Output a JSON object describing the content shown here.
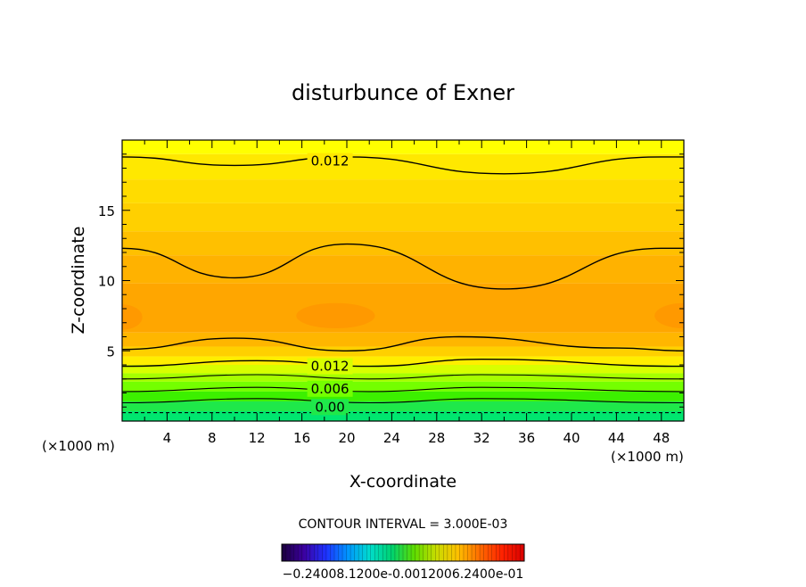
{
  "chart_data": {
    "type": "contour",
    "title": "disturbunce of Exner",
    "xlabel": "X-coordinate",
    "ylabel": "Z-coordinate",
    "x_unit": "(×1000 m)",
    "y_unit": "(×1000 m)",
    "xlim": [
      0,
      50
    ],
    "ylim": [
      0,
      20
    ],
    "x_ticks": [
      4,
      8,
      12,
      16,
      20,
      24,
      28,
      32,
      36,
      40,
      44,
      48
    ],
    "y_ticks": [
      5,
      10,
      15
    ],
    "contour_interval_text": "CONTOUR INTERVAL = 3.000E-03",
    "colorbar_label_text": "−0.24008.1200e-0.0012006.2400e-01",
    "contour_labels": [
      {
        "text": "0.012",
        "x": 18.5,
        "y": 18.5
      },
      {
        "text": "0.012",
        "x": 18.5,
        "y": 3.9
      },
      {
        "text": "0.006",
        "x": 18.5,
        "y": 2.3
      },
      {
        "text": "0.00",
        "x": 18.5,
        "y": 1.0
      }
    ],
    "contour_lines": [
      {
        "level": 0.012,
        "points": [
          [
            0,
            18.8
          ],
          [
            10,
            18.2
          ],
          [
            20,
            18.8
          ],
          [
            34,
            17.6
          ],
          [
            48,
            18.8
          ],
          [
            50,
            18.8
          ]
        ]
      },
      {
        "level": 0.015,
        "points": [
          [
            0,
            12.3
          ],
          [
            10,
            10.2
          ],
          [
            20,
            12.6
          ],
          [
            34,
            9.4
          ],
          [
            48,
            12.3
          ],
          [
            50,
            12.3
          ]
        ]
      },
      {
        "level": 0.015,
        "points": [
          [
            0,
            5.1
          ],
          [
            10,
            5.9
          ],
          [
            20,
            5.0
          ],
          [
            30,
            6.0
          ],
          [
            44,
            5.2
          ],
          [
            50,
            5.0
          ]
        ]
      },
      {
        "level": 0.012,
        "points": [
          [
            0,
            3.9
          ],
          [
            12,
            4.3
          ],
          [
            22,
            3.9
          ],
          [
            32,
            4.4
          ],
          [
            50,
            3.9
          ]
        ]
      },
      {
        "level": 0.009,
        "points": [
          [
            0,
            3.0
          ],
          [
            12,
            3.3
          ],
          [
            22,
            3.0
          ],
          [
            32,
            3.3
          ],
          [
            50,
            3.0
          ]
        ]
      },
      {
        "level": 0.006,
        "points": [
          [
            0,
            2.1
          ],
          [
            12,
            2.4
          ],
          [
            22,
            2.1
          ],
          [
            32,
            2.4
          ],
          [
            50,
            2.1
          ]
        ]
      },
      {
        "level": 0.003,
        "points": [
          [
            0,
            1.3
          ],
          [
            12,
            1.6
          ],
          [
            22,
            1.3
          ],
          [
            32,
            1.6
          ],
          [
            50,
            1.3
          ]
        ]
      },
      {
        "level": 0.0,
        "points": [
          [
            0,
            0.6
          ],
          [
            50,
            0.6
          ]
        ],
        "dashed": true
      }
    ],
    "fill_bands": [
      {
        "from": 19.0,
        "to": 20.0,
        "color": "#ffff00"
      },
      {
        "from": 17.2,
        "to": 19.0,
        "color": "#ffe800"
      },
      {
        "from": 15.5,
        "to": 17.2,
        "color": "#ffdc00"
      },
      {
        "from": 13.5,
        "to": 15.5,
        "color": "#ffd000"
      },
      {
        "from": 11.8,
        "to": 13.5,
        "color": "#ffc000"
      },
      {
        "from": 9.8,
        "to": 11.8,
        "color": "#ffb200"
      },
      {
        "from": 6.3,
        "to": 9.8,
        "color": "#ffa600"
      },
      {
        "from": 5.3,
        "to": 6.3,
        "color": "#ffb600"
      },
      {
        "from": 4.6,
        "to": 5.3,
        "color": "#ffd000"
      },
      {
        "from": 4.0,
        "to": 4.6,
        "color": "#ffee00"
      },
      {
        "from": 3.4,
        "to": 4.0,
        "color": "#d8ff00"
      },
      {
        "from": 2.8,
        "to": 3.4,
        "color": "#a6ff00"
      },
      {
        "from": 2.1,
        "to": 2.8,
        "color": "#74ff00"
      },
      {
        "from": 1.4,
        "to": 2.1,
        "color": "#3cf000"
      },
      {
        "from": 0.7,
        "to": 1.4,
        "color": "#1fe84a"
      },
      {
        "from": 0.0,
        "to": 0.7,
        "color": "#00e66f"
      }
    ],
    "colors": {
      "frame": "#000000",
      "warm_spot": "#ff9400",
      "colorbar": [
        "#1a003c",
        "#3c00a0",
        "#1e32ff",
        "#0096ff",
        "#00dccc",
        "#00d26e",
        "#5cdc00",
        "#c8dc00",
        "#ffc000",
        "#ff6a00",
        "#ff2200",
        "#d80000"
      ]
    }
  }
}
